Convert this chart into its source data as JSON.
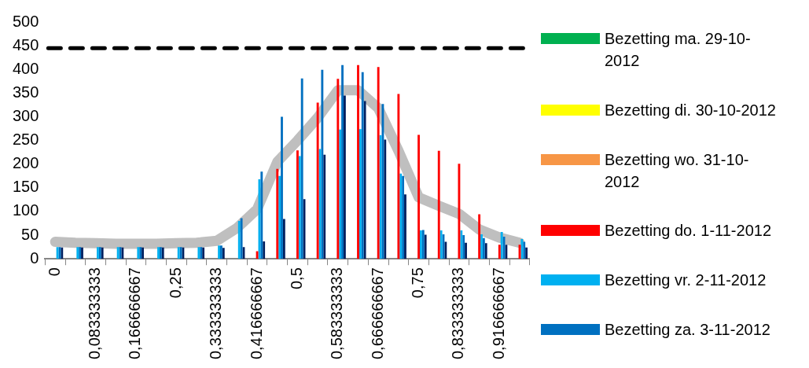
{
  "chart_data": {
    "type": "bar",
    "categories": [
      "0",
      null,
      "0,083333333",
      null,
      "0,166666667",
      null,
      "0,25",
      null,
      "0,333333333",
      null,
      "0,416666667",
      null,
      "0,5",
      null,
      "0,583333333",
      null,
      "0,666666667",
      null,
      "0,75",
      null,
      "0,833333333",
      null,
      "0,916666667",
      null
    ],
    "series": [
      {
        "name": "Bezetting ma. 29-10-2012",
        "color": "#00b050",
        "values": [
          null,
          null,
          null,
          null,
          null,
          null,
          null,
          null,
          null,
          null,
          null,
          null,
          null,
          null,
          null,
          null,
          null,
          null,
          null,
          null,
          null,
          null,
          null,
          null
        ]
      },
      {
        "name": "Bezetting di. 30-10-2012",
        "color": "#ffff00",
        "values": [
          null,
          null,
          null,
          null,
          null,
          null,
          null,
          null,
          null,
          null,
          null,
          null,
          null,
          null,
          null,
          null,
          null,
          null,
          null,
          null,
          null,
          null,
          null,
          null
        ]
      },
      {
        "name": "Bezetting wo. 31-10-2012",
        "color": "#f79646",
        "values": [
          null,
          null,
          null,
          null,
          null,
          null,
          null,
          null,
          null,
          null,
          null,
          null,
          null,
          null,
          null,
          null,
          null,
          null,
          null,
          null,
          null,
          null,
          null,
          null
        ]
      },
      {
        "name": "Bezetting do. 1-11-2012",
        "color": "#ff0000",
        "values": [
          null,
          null,
          null,
          null,
          null,
          null,
          null,
          null,
          null,
          null,
          16,
          190,
          229,
          330,
          380,
          409,
          405,
          348,
          262,
          228,
          201,
          94,
          30,
          30
        ]
      },
      {
        "name": "Bezetting vr. 2-11-2012",
        "color": "#00b0f0",
        "values": [
          25,
          25,
          25,
          25,
          25,
          25,
          25,
          25,
          28,
          80,
          168,
          175,
          217,
          232,
          273,
          274,
          261,
          180,
          60,
          60,
          60,
          52,
          57,
          42
        ]
      },
      {
        "name": "Bezetting za. 3-11-2012",
        "color": "#0070c0",
        "values": [
          25,
          25,
          25,
          25,
          25,
          25,
          25,
          25,
          28,
          86,
          184,
          300,
          381,
          399,
          409,
          394,
          327,
          175,
          61,
          52,
          50,
          44,
          47,
          36
        ]
      },
      {
        "color": "#002060",
        "values": [
          24,
          24,
          24,
          24,
          24,
          24,
          24,
          24,
          23,
          25,
          37,
          84,
          126,
          220,
          345,
          333,
          252,
          136,
          51,
          36,
          34,
          33,
          30,
          24
        ]
      },
      {
        "type": "line",
        "color": "#bfbfbf",
        "values": [
          36,
          34,
          33,
          32,
          32,
          32,
          33,
          34,
          38,
          65,
          105,
          205,
          250,
          298,
          356,
          356,
          318,
          228,
          130,
          112,
          95,
          62,
          45,
          34
        ]
      }
    ],
    "ylim": [
      0,
      500
    ],
    "yticks": [
      0,
      50,
      100,
      150,
      200,
      250,
      300,
      350,
      400,
      450,
      500
    ],
    "ref_lines": [
      {
        "axis": "y",
        "value": 445,
        "color": "#000000",
        "line_style": "dashed"
      }
    ],
    "grid": false,
    "legend": "right",
    "marker": "none"
  }
}
